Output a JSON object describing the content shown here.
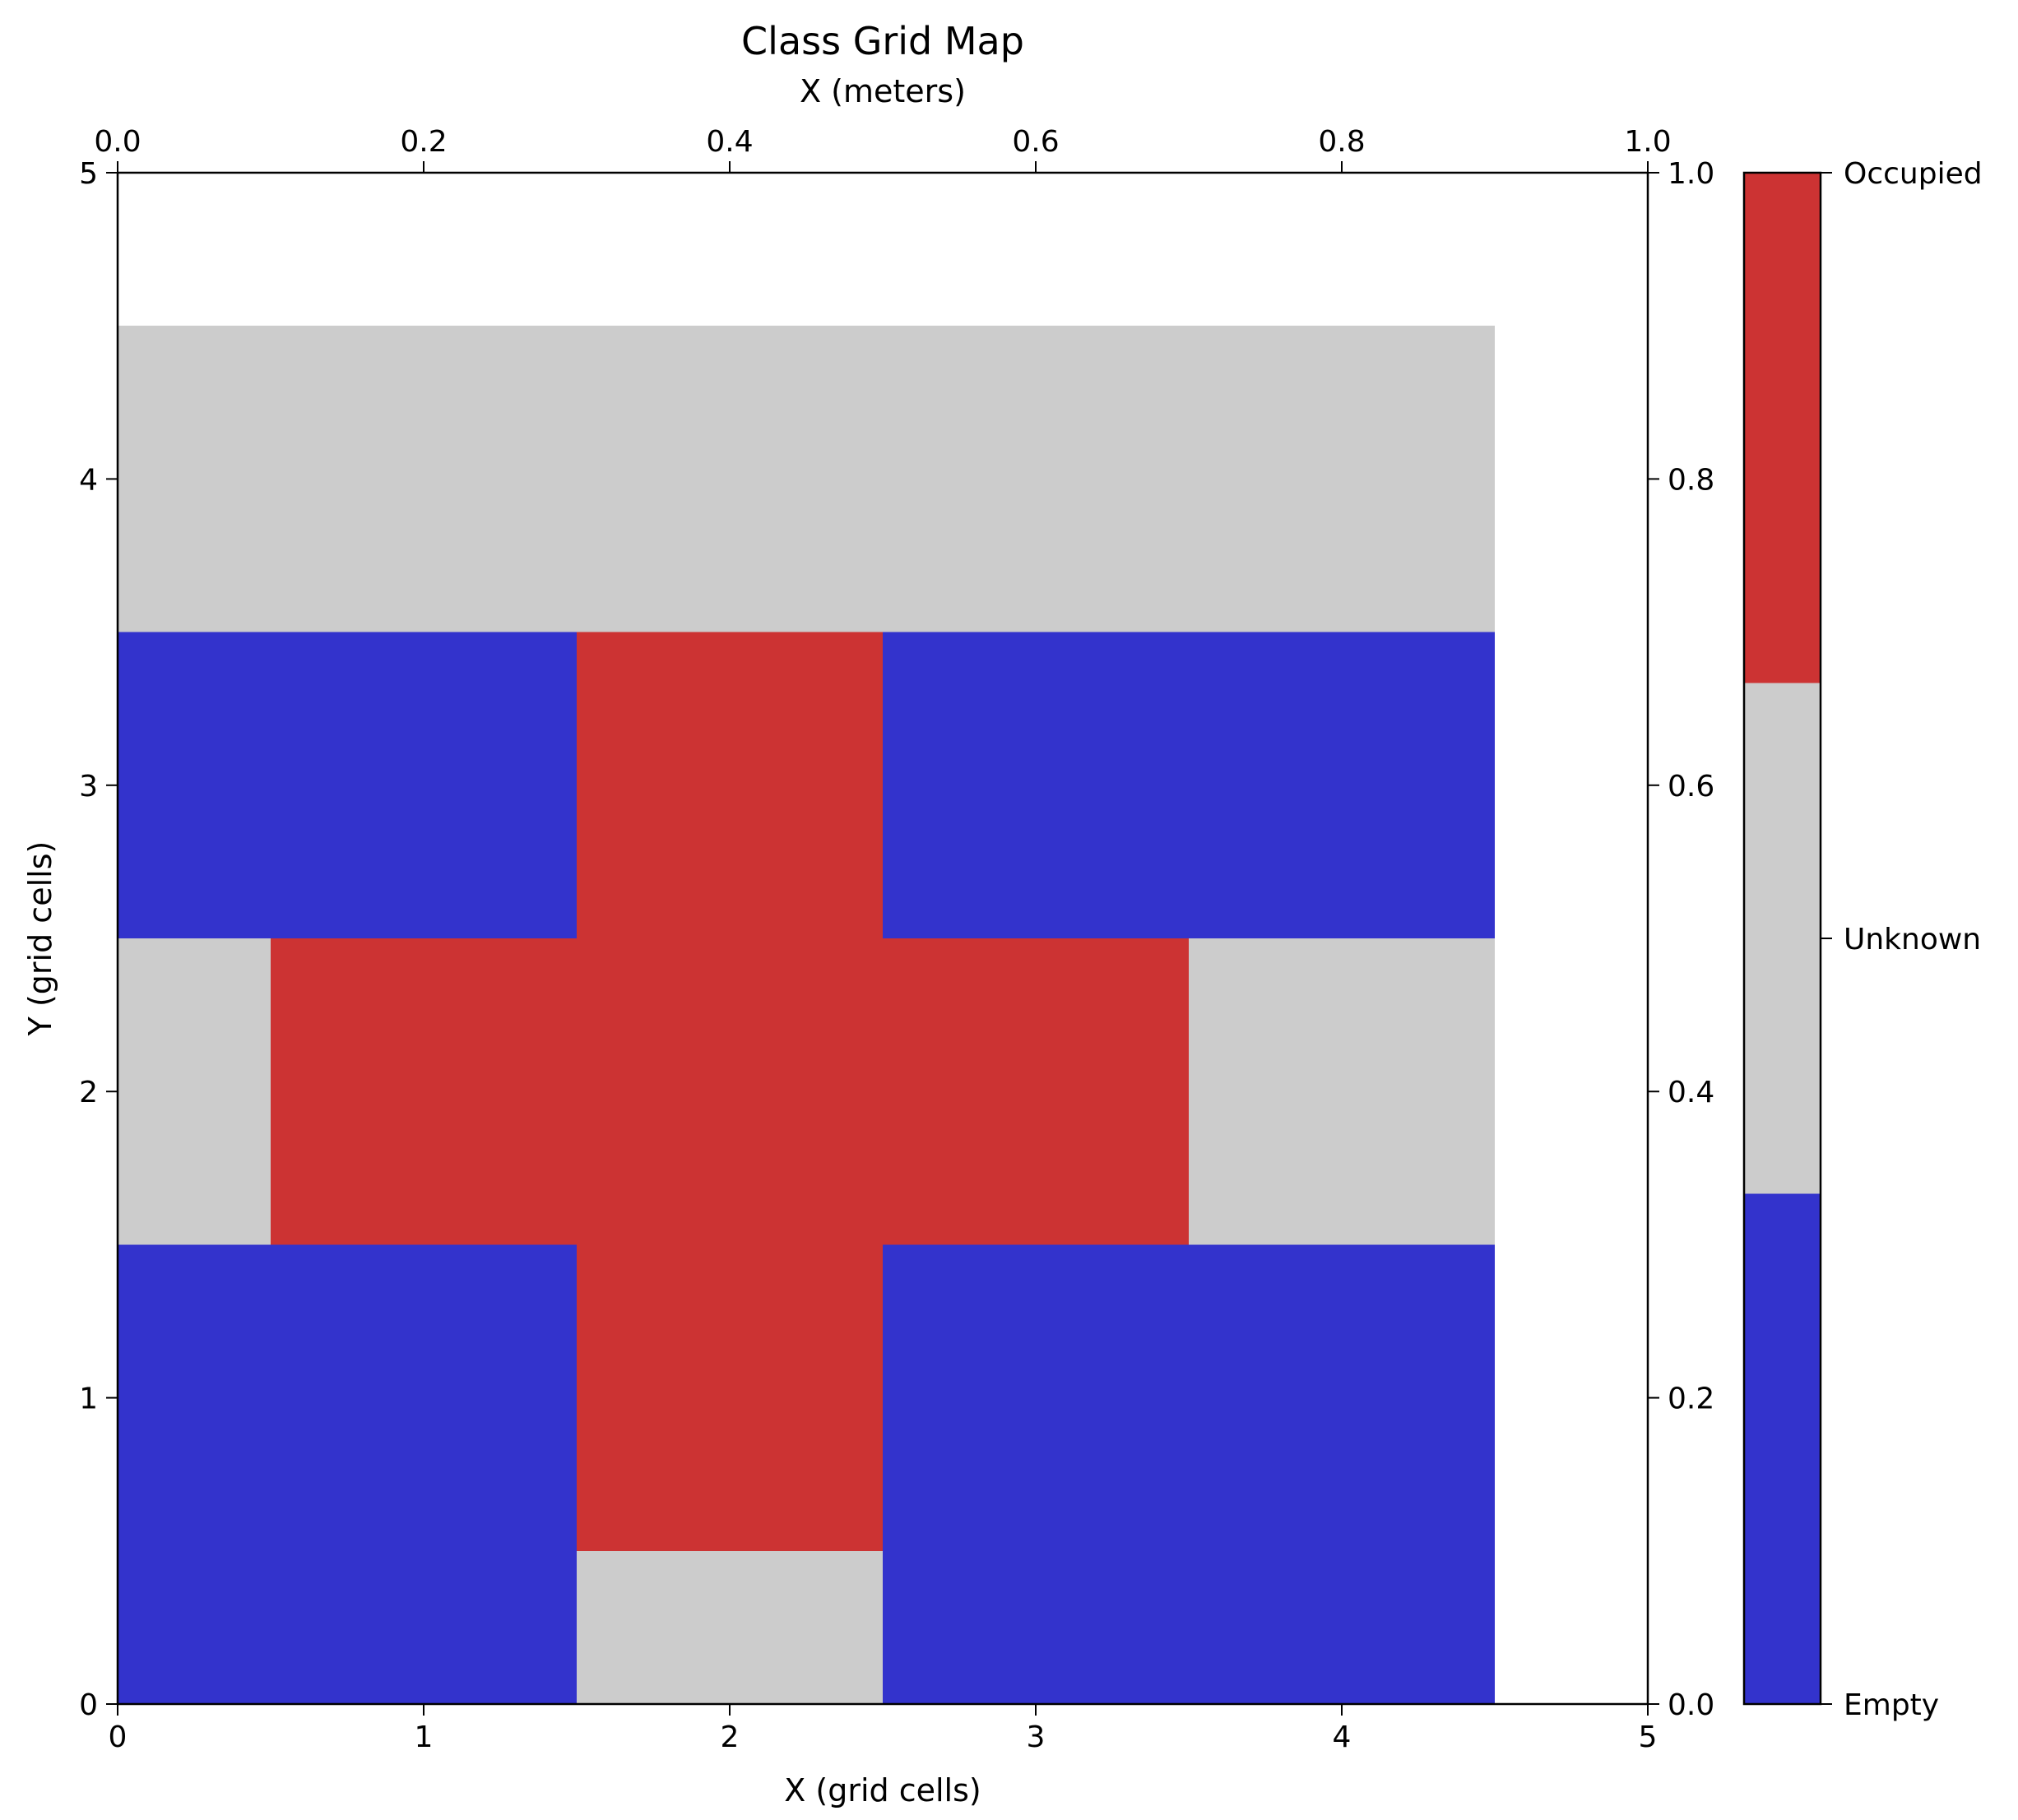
{
  "chart_data": {
    "type": "heatmap",
    "title": "Class Grid Map",
    "xlabel": "X (grid cells)",
    "ylabel": "Y (grid cells)",
    "top_xlabel": "X (meters)",
    "xlim": [
      0,
      5
    ],
    "ylim": [
      0,
      5
    ],
    "top_xlim": [
      0,
      1
    ],
    "right_ylim": [
      0,
      1
    ],
    "x_ticks": [
      "0",
      "1",
      "2",
      "3",
      "4",
      "5"
    ],
    "y_ticks": [
      "0",
      "1",
      "2",
      "3",
      "4",
      "5"
    ],
    "top_x_ticks": [
      "0.0",
      "0.2",
      "0.4",
      "0.6",
      "0.8",
      "1.0"
    ],
    "right_y_ticks": [
      "0.0",
      "0.2",
      "0.4",
      "0.6",
      "0.8",
      "1.0"
    ],
    "grid": false,
    "cell_columns": [
      0,
      1,
      2,
      3,
      4
    ],
    "cell_rows": [
      0,
      1,
      2,
      3,
      4
    ],
    "cells": [
      [
        0,
        0,
        1,
        0,
        1
      ],
      [
        0,
        0,
        2,
        0,
        1
      ],
      [
        1,
        2,
        2,
        2,
        1
      ],
      [
        0,
        0,
        2,
        0,
        1
      ],
      [
        0,
        0,
        1,
        0,
        1
      ]
    ],
    "classes": [
      {
        "value": 0,
        "label": "Empty",
        "color": "#3333cc"
      },
      {
        "value": 1,
        "label": "Unknown",
        "color": "#cccccc"
      },
      {
        "value": 2,
        "label": "Occupied",
        "color": "#cc3333"
      }
    ],
    "colorbar": {
      "position": "right",
      "tick_labels": [
        "Empty",
        "Unknown",
        "Occupied"
      ]
    }
  }
}
